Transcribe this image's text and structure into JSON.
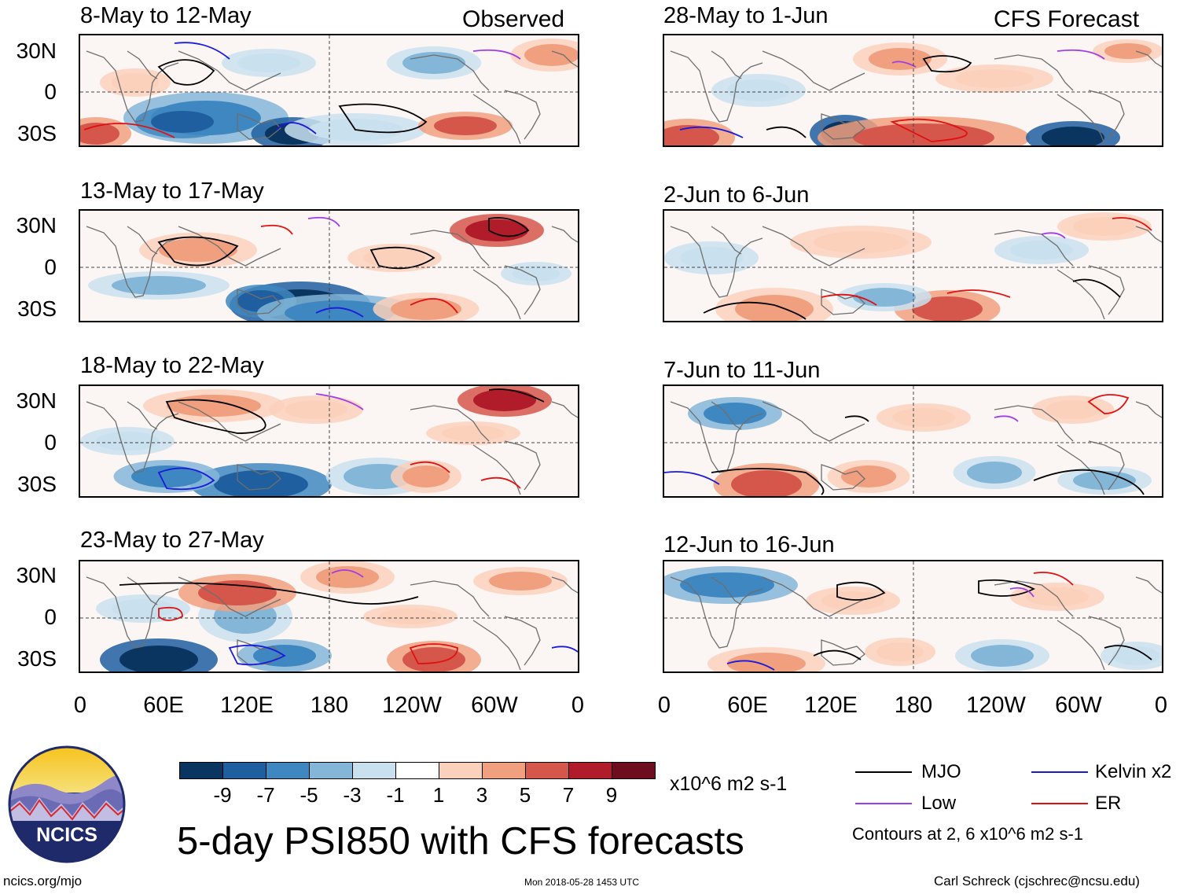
{
  "panels_left_header": "Observed",
  "panels_right_header": "CFS Forecast",
  "panels": [
    {
      "title": "8-May to 12-May"
    },
    {
      "title": "13-May to 17-May"
    },
    {
      "title": "18-May to 22-May"
    },
    {
      "title": "23-May to 27-May"
    },
    {
      "title": "28-May to 1-Jun"
    },
    {
      "title": "2-Jun to 6-Jun"
    },
    {
      "title": "7-Jun to 11-Jun"
    },
    {
      "title": "12-Jun to 16-Jun"
    }
  ],
  "lat_labels": [
    "30N",
    "0",
    "30S"
  ],
  "lon_labels": [
    "0",
    "60E",
    "120E",
    "180",
    "120W",
    "60W",
    "0"
  ],
  "colorbar": {
    "ticks": [
      "-9",
      "-7",
      "-5",
      "-3",
      "-1",
      "1",
      "3",
      "5",
      "7",
      "9"
    ],
    "units": "x10^6 m2 s-1",
    "colors": [
      "#0b3561",
      "#1f5fa0",
      "#3f87c0",
      "#84b6d8",
      "#c9e0ee",
      "#ffffff",
      "#fbd1bc",
      "#f1a07f",
      "#d5574c",
      "#b11c2b",
      "#6d0d1e"
    ]
  },
  "legend": {
    "items": [
      {
        "label": "MJO",
        "color": "#000000"
      },
      {
        "label": "Kelvin x2",
        "color": "#1a1adc"
      },
      {
        "label": "Low",
        "color": "#a03ce6"
      },
      {
        "label": "ER",
        "color": "#e01010"
      }
    ],
    "contours_note": "Contours at 2, 6 x10^6 m2 s-1"
  },
  "main_title": "5-day PSI850 with CFS forecasts",
  "logo_text": "NCICS",
  "footer": {
    "left": "ncics.org/mjo",
    "center": "Mon 2018-05-28 1453 UTC",
    "right": "Carl Schreck (cjschrec@ncsu.edu)"
  }
}
